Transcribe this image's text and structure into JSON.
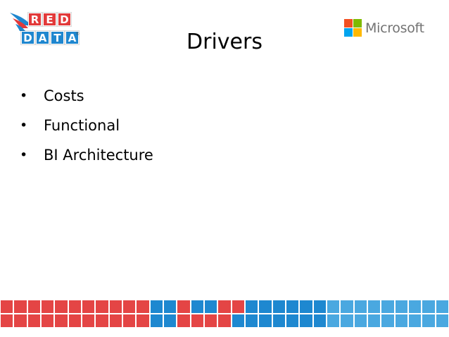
{
  "slide": {
    "title": "Drivers",
    "bullets": [
      {
        "symbol": "•",
        "text": "Costs"
      },
      {
        "symbol": "•",
        "text": "Functional"
      },
      {
        "symbol": "•",
        "text": "BI Architecture"
      }
    ]
  },
  "logos": {
    "red_data": {
      "top_letters": [
        "R",
        "E",
        "D"
      ],
      "bottom_letters": [
        "D",
        "A",
        "T",
        "A"
      ],
      "reg_mark": "®",
      "colors": {
        "red": "#e23a3a",
        "blue": "#1f87cf"
      }
    },
    "microsoft": {
      "name": "Microsoft",
      "colors": [
        "#f25022",
        "#7fba00",
        "#00a4ef",
        "#ffb900"
      ]
    }
  },
  "footer_strip": {
    "rows": 2,
    "columns": 33,
    "colors": {
      "red": "#e44545",
      "blue": "#1e88d0",
      "light_blue": "#4aa8e0"
    },
    "pattern_top": [
      "red",
      "red",
      "red",
      "red",
      "red",
      "red",
      "red",
      "red",
      "red",
      "red",
      "red",
      "blue",
      "blue",
      "red",
      "blue",
      "blue",
      "red",
      "red",
      "blue",
      "blue",
      "blue",
      "blue",
      "blue",
      "blue",
      "light_blue",
      "light_blue",
      "light_blue",
      "light_blue",
      "light_blue",
      "light_blue",
      "light_blue",
      "light_blue",
      "light_blue"
    ],
    "pattern_bottom": [
      "red",
      "red",
      "red",
      "red",
      "red",
      "red",
      "red",
      "red",
      "red",
      "red",
      "red",
      "blue",
      "blue",
      "red",
      "red",
      "red",
      "red",
      "blue",
      "blue",
      "blue",
      "blue",
      "blue",
      "blue",
      "blue",
      "light_blue",
      "light_blue",
      "light_blue",
      "light_blue",
      "light_blue",
      "light_blue",
      "light_blue",
      "light_blue",
      "light_blue"
    ]
  }
}
